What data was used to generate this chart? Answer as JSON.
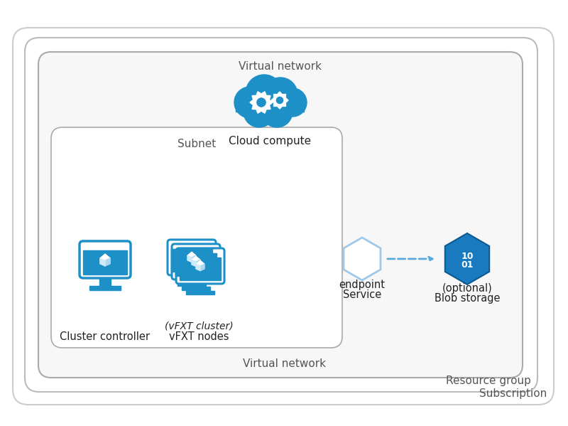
{
  "bg_color": "#ffffff",
  "border_color": "#cccccc",
  "blue_main": "#1e90c8",
  "blue_light": "#5bc0f5",
  "blue_dark": "#0a6fad",
  "blue_hex": "#1a7abf",
  "hex_outline": "#a0c8e8",
  "label_color": "#555555",
  "text_color": "#222222",
  "dashed_color": "#5aabdb",
  "subscription_label": "Subscription",
  "resource_group_label": "Resource group",
  "vnet_label": "Virtual network",
  "subnet_label": "Subnet",
  "cluster_controller_label": "Cluster controller",
  "vfxt_nodes_label1": "vFXT nodes",
  "vfxt_nodes_label2": "(vFXT cluster)",
  "service_endpoint_label1": "Service",
  "service_endpoint_label2": "endpoint",
  "blob_storage_label1": "Blob storage",
  "blob_storage_label2": "(optional)",
  "cloud_compute_label": "Cloud compute"
}
